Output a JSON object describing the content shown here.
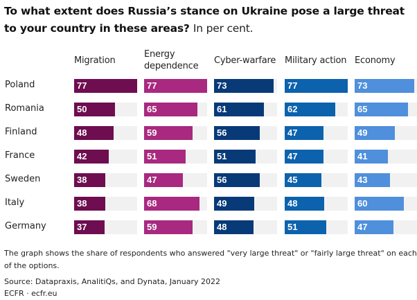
{
  "chart_data": {
    "type": "bar",
    "orientation": "horizontal",
    "layout": "small-multiples",
    "title": "To what extent does Russia’s stance on Ukraine pose a large threat to your country in these areas?",
    "subtitle": "In per cent.",
    "xlabel": "",
    "ylabel": "",
    "xlim": [
      0,
      77
    ],
    "grid": false,
    "legend": "none",
    "categories": [
      "Poland",
      "Romania",
      "Finland",
      "France",
      "Sweden",
      "Italy",
      "Germany"
    ],
    "series": [
      {
        "name": "Migration",
        "name_lines": [
          "Migration"
        ],
        "color": "#6e0d50",
        "values": [
          77,
          50,
          48,
          42,
          38,
          38,
          37
        ]
      },
      {
        "name": "Energy dependence",
        "name_lines": [
          "Energy",
          "dependence"
        ],
        "color": "#a8297f",
        "values": [
          77,
          65,
          59,
          51,
          47,
          68,
          59
        ]
      },
      {
        "name": "Cyber-warfare",
        "name_lines": [
          "Cyber-warfare"
        ],
        "color": "#083a78",
        "values": [
          73,
          61,
          56,
          51,
          56,
          49,
          48
        ]
      },
      {
        "name": "Military action",
        "name_lines": [
          "Military action"
        ],
        "color": "#0c62ad",
        "values": [
          77,
          62,
          47,
          47,
          45,
          48,
          51
        ]
      },
      {
        "name": "Economy",
        "name_lines": [
          "Economy"
        ],
        "color": "#4f8fdc",
        "values": [
          73,
          65,
          49,
          41,
          43,
          60,
          47
        ]
      }
    ],
    "track_color": "#f1f1f1"
  },
  "footer": {
    "note_line1": "The graph shows the share of respondents who answered \"very large threat\" or \"fairly large threat\" on each",
    "note_line2": "of the options.",
    "source": "Source: Datapraxis, AnalitiQs, and Dynata, January 2022",
    "credit": "ECFR · ecfr.eu"
  }
}
